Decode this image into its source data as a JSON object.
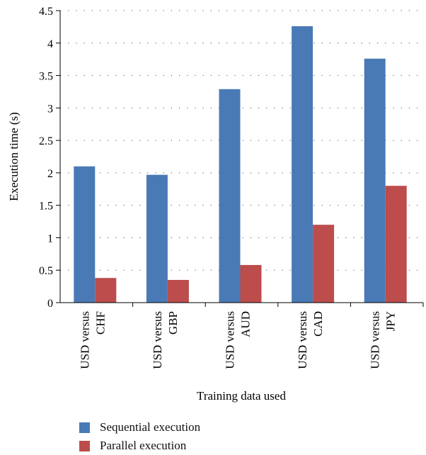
{
  "chart_data": {
    "type": "bar",
    "title": "",
    "xlabel": "Training data used",
    "ylabel": "Execution time (s)",
    "ylim": [
      0,
      4.5
    ],
    "yticks": [
      "0",
      "0.5",
      "1",
      "1.5",
      "2",
      "2.5",
      "3",
      "3.5",
      "4",
      "4.5"
    ],
    "grid": "dotted horizontal",
    "legend_position": "bottom",
    "categories": [
      [
        "USD versus",
        "CHF"
      ],
      [
        "USD versus",
        "GBP"
      ],
      [
        "USD versus",
        "AUD"
      ],
      [
        "USD versus",
        "CAD"
      ],
      [
        "USD versus",
        "JPY"
      ]
    ],
    "series": [
      {
        "name": "Sequential execution",
        "color": "#4a7ab5",
        "values": [
          2.1,
          1.97,
          3.29,
          4.26,
          3.76
        ]
      },
      {
        "name": "Parallel execution",
        "color": "#bc4d4c",
        "values": [
          0.38,
          0.35,
          0.58,
          1.2,
          1.8
        ]
      }
    ]
  }
}
